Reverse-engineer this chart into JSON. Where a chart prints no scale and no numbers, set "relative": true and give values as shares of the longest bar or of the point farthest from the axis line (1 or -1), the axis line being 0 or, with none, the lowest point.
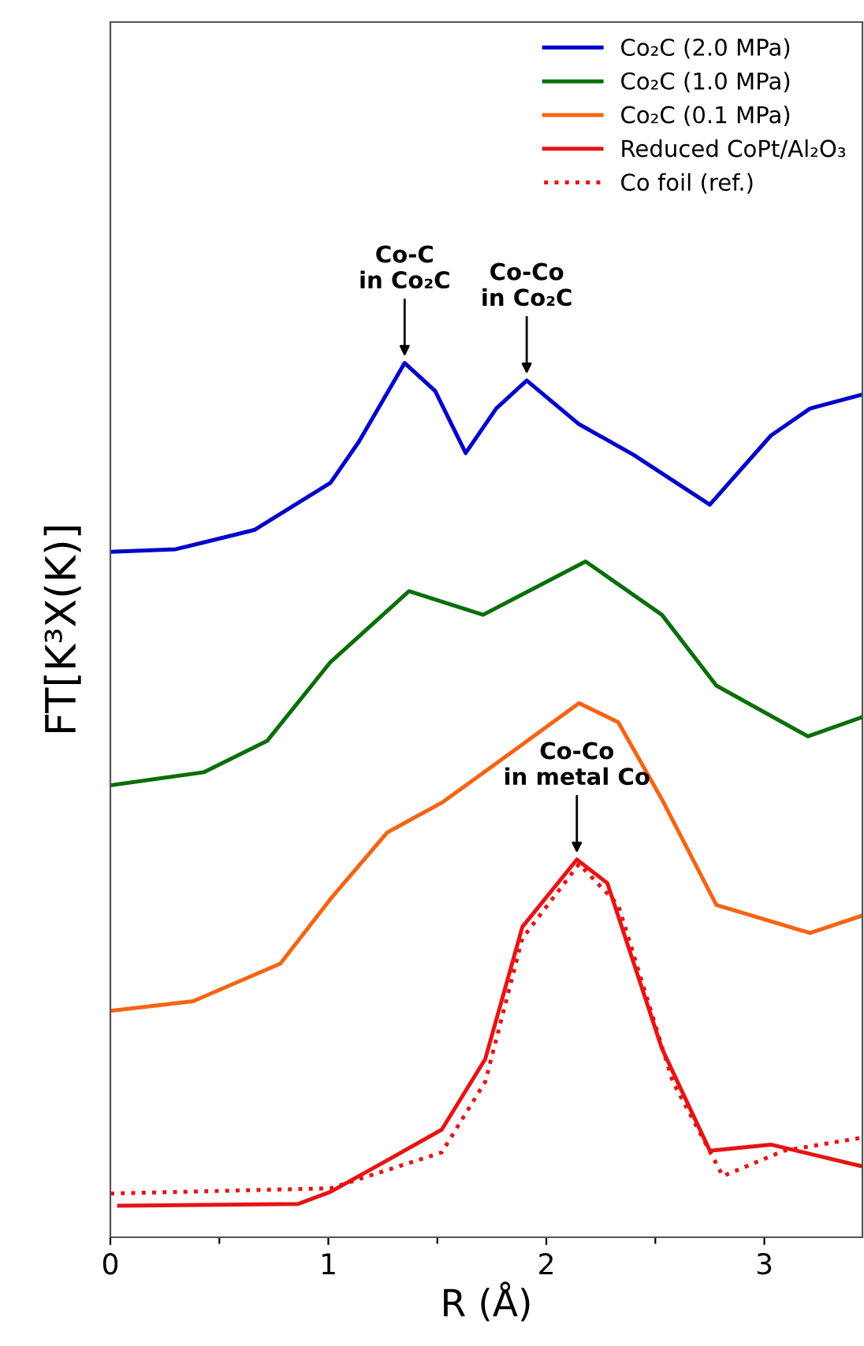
{
  "chart_data": {
    "type": "line",
    "relative": true,
    "xlabel": "R (Å)",
    "ylabel": "FT[K³X(K)]",
    "xlim": [
      0,
      3.45
    ],
    "xticks": [
      0,
      {
        "value": 0.5,
        "label": null
      },
      1,
      {
        "value": 1.5,
        "label": null
      },
      2,
      {
        "value": 2.5,
        "label": null
      },
      3
    ],
    "legend": "top right",
    "grid": false,
    "series": [
      {
        "name": "Co₂C (2.0 MPa)",
        "color": "#0000c8",
        "line_style": "solid",
        "x": [
          0,
          0.3,
          0.66,
          1.01,
          1.14,
          1.35,
          1.49,
          1.63,
          1.77,
          1.91,
          2.15,
          2.4,
          2.75,
          3.03,
          3.21,
          3.45
        ],
        "values": [
          0.784,
          0.787,
          0.809,
          0.863,
          0.91,
          1,
          0.968,
          0.897,
          0.948,
          0.98,
          0.93,
          0.895,
          0.838,
          0.917,
          0.948,
          0.964
        ]
      },
      {
        "name": "Co₂C (1.0 MPa)",
        "color": "#0a6e0a",
        "line_style": "solid",
        "x": [
          0,
          0.43,
          0.72,
          1.01,
          1.37,
          1.71,
          2.18,
          2.53,
          2.78,
          3.2,
          3.45
        ],
        "values": [
          0.517,
          0.532,
          0.568,
          0.658,
          0.739,
          0.712,
          0.773,
          0.712,
          0.631,
          0.573,
          0.595
        ]
      },
      {
        "name": "Co₂C (0.1 MPa)",
        "color": "#f56414",
        "line_style": "solid",
        "x": [
          0,
          0.38,
          0.78,
          1.01,
          1.27,
          1.52,
          1.82,
          2.15,
          2.33,
          2.53,
          2.78,
          3.21,
          3.45
        ],
        "values": [
          0.259,
          0.27,
          0.313,
          0.387,
          0.463,
          0.497,
          0.551,
          0.611,
          0.589,
          0.501,
          0.38,
          0.348,
          0.368
        ]
      },
      {
        "name": "Reduced CoPt/Al₂O₃",
        "color": "#e61414",
        "line_style": "solid",
        "x": [
          0.04,
          0.86,
          1.01,
          1.27,
          1.52,
          1.72,
          1.89,
          2.14,
          2.28,
          2.53,
          2.75,
          3.03,
          3.45
        ],
        "values": [
          0.036,
          0.038,
          0.052,
          0.088,
          0.123,
          0.204,
          0.355,
          0.432,
          0.405,
          0.216,
          0.099,
          0.106,
          0.081
        ]
      },
      {
        "name": "Co foil (ref.)",
        "color": "#e61414",
        "line_style": "dotted",
        "x": [
          0,
          1.01,
          1.52,
          1.72,
          1.89,
          2.15,
          2.33,
          2.58,
          2.81,
          3.09,
          3.45
        ],
        "values": [
          0.05,
          0.056,
          0.097,
          0.178,
          0.342,
          0.427,
          0.38,
          0.178,
          0.07,
          0.099,
          0.114
        ]
      }
    ],
    "annotations": [
      {
        "text": "Co-C\nin Co₂C",
        "x": 1.35,
        "y": 1
      },
      {
        "text": "Co-Co\nin Co₂C",
        "x": 1.91,
        "y": 0.98
      },
      {
        "text": "Co-Co\nin metal Co",
        "x": 2.14,
        "y": 0.432
      }
    ]
  }
}
